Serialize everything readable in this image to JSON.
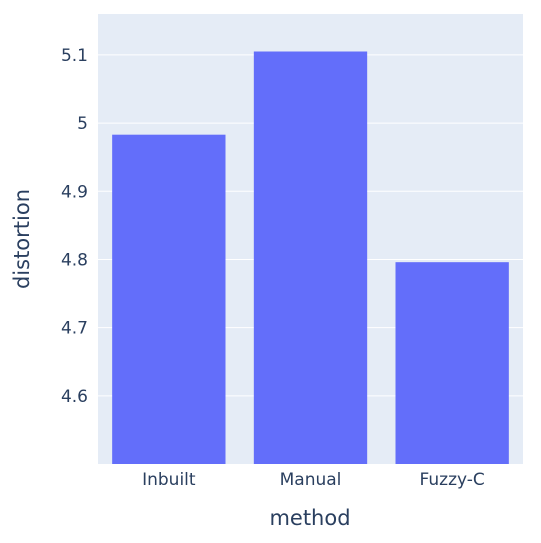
{
  "chart_data": {
    "type": "bar",
    "categories": [
      "Inbuilt",
      "Manual",
      "Fuzzy-C"
    ],
    "values": [
      4.983,
      5.105,
      4.796
    ],
    "xlabel": "method",
    "ylabel": "distortion",
    "ylim": [
      4.5,
      5.16
    ],
    "yticks": [
      4.6,
      4.7,
      4.8,
      4.9,
      5,
      5.1
    ],
    "ytick_labels": [
      "4.6",
      "4.7",
      "4.8",
      "4.9",
      "5",
      "5.1"
    ],
    "grid": true,
    "legend": "none",
    "colors": {
      "bar": "#636efa",
      "plot_bg": "#e5ecf6",
      "grid": "#ffffff",
      "text": "#2a3f5f"
    }
  }
}
